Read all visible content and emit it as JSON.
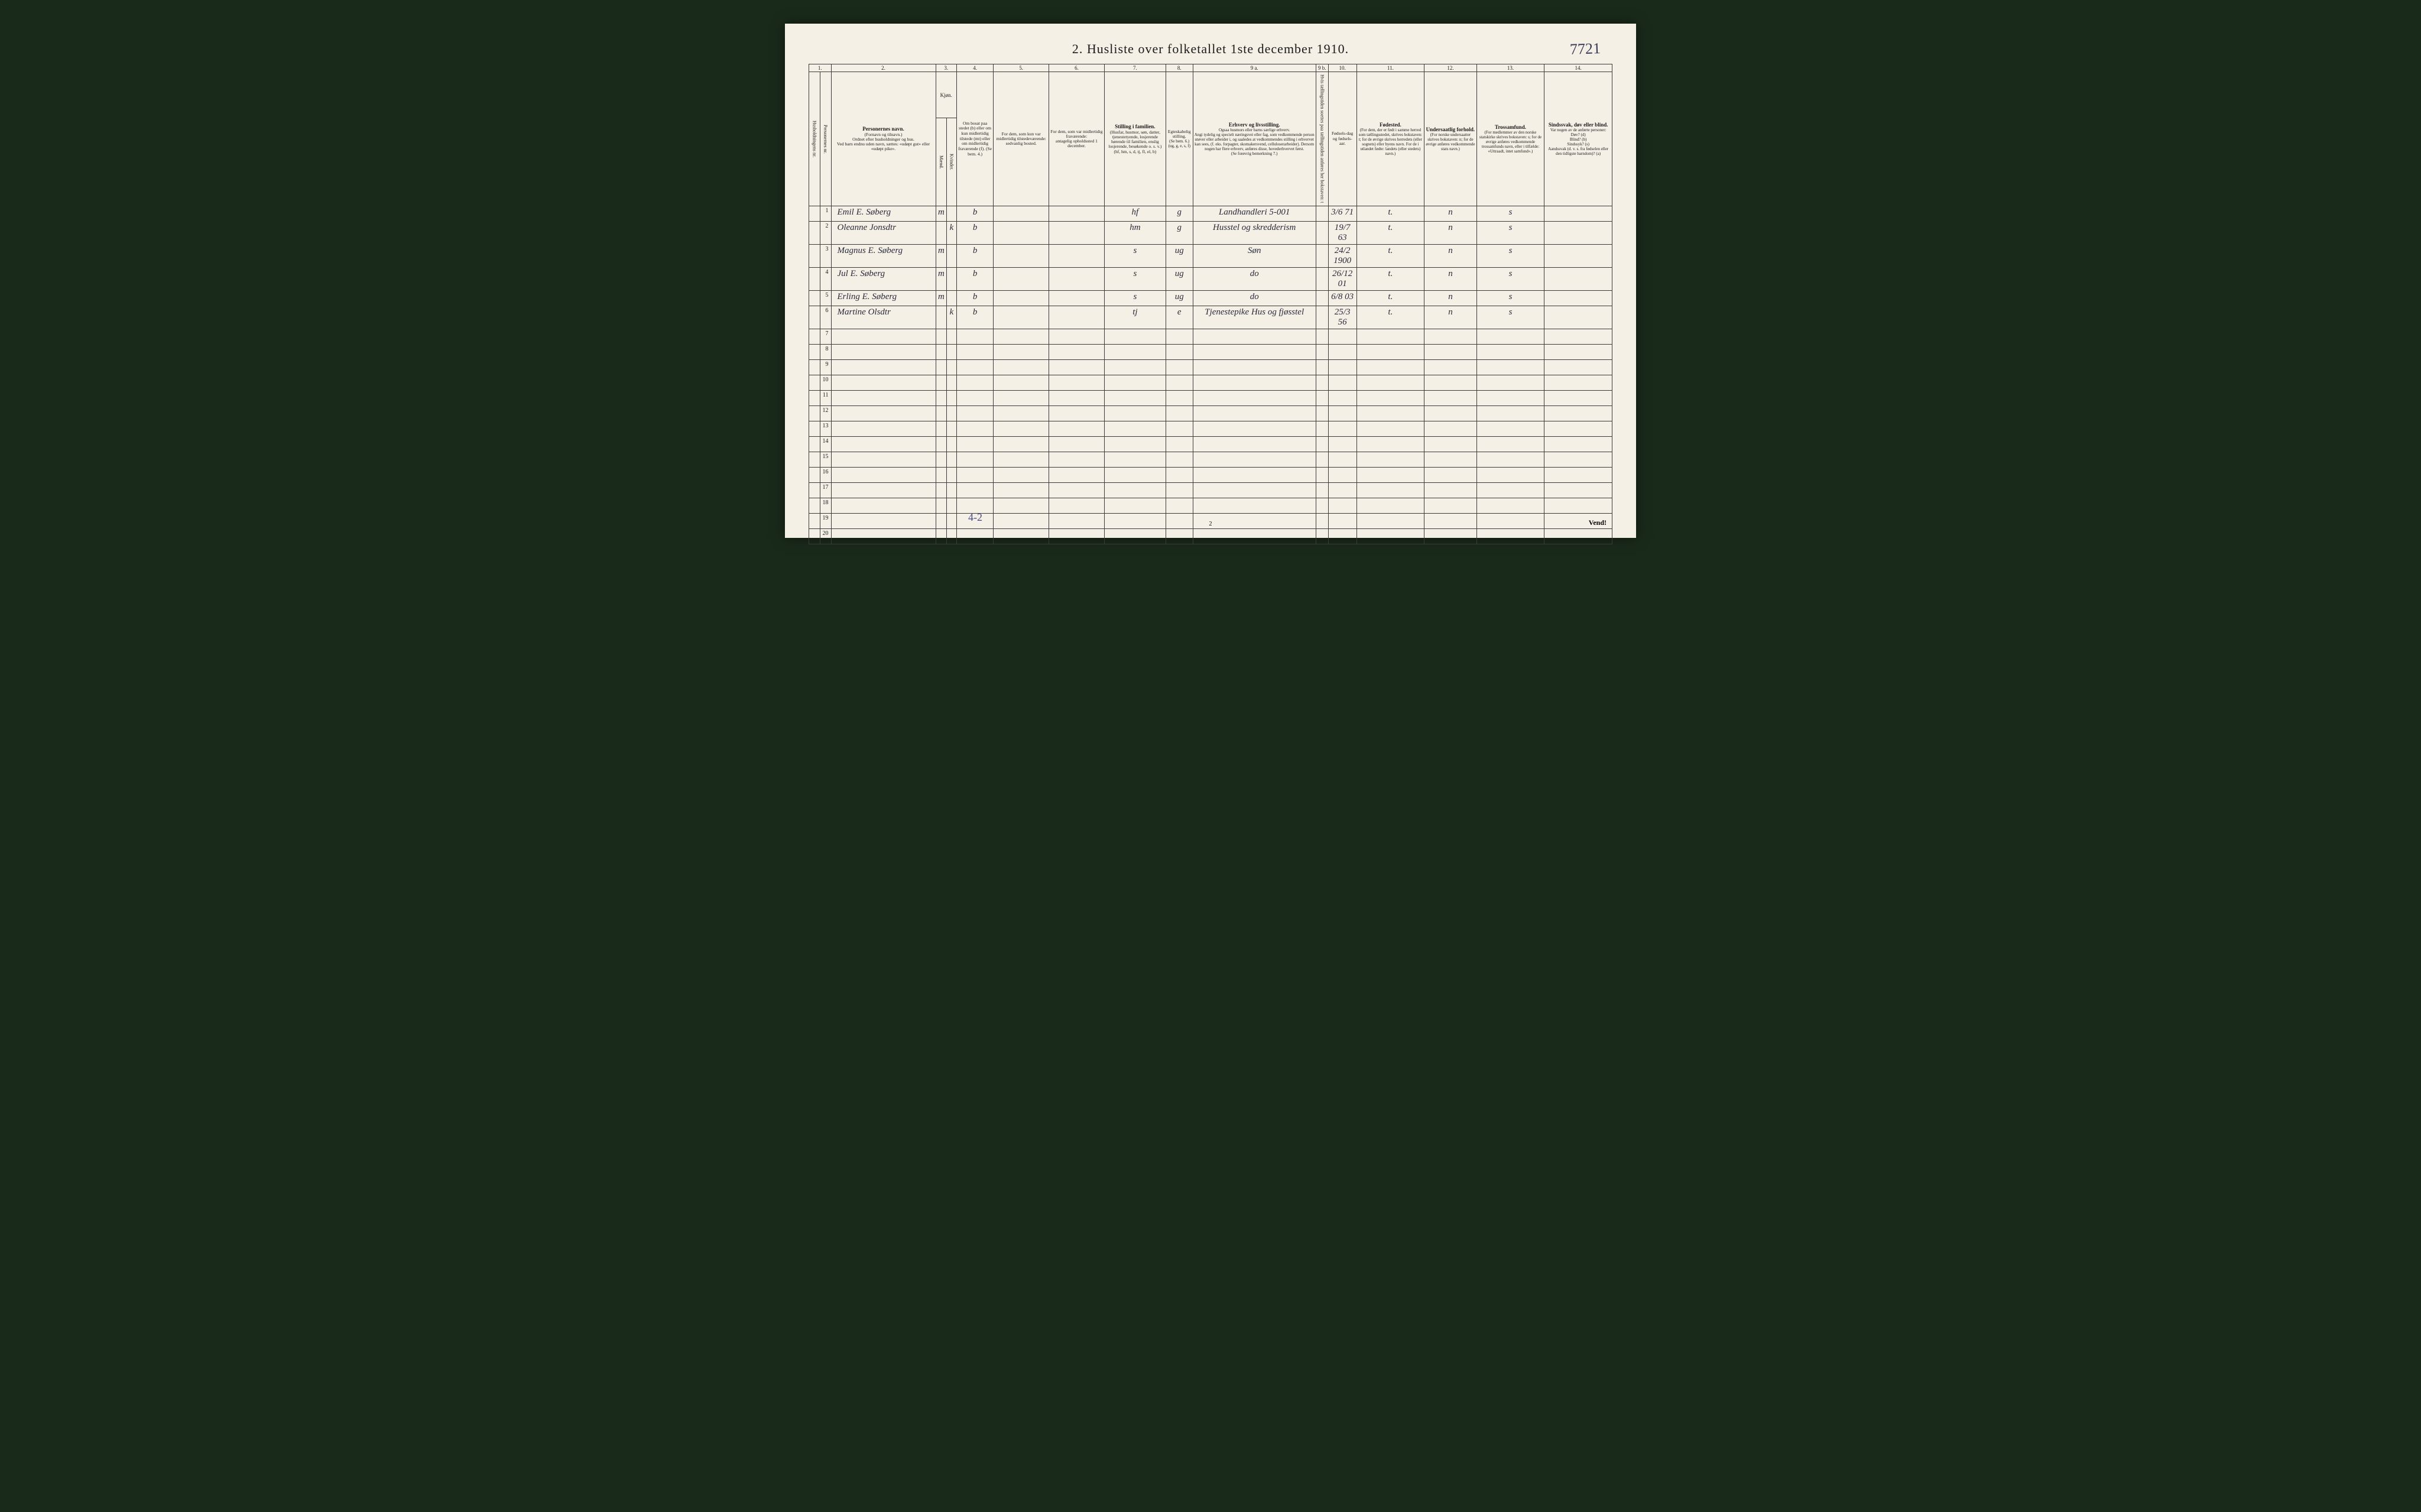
{
  "title": "2.  Husliste over folketallet 1ste december 1910.",
  "topright_hand": "7721",
  "colnums": [
    "1.",
    "2.",
    "3.",
    "4.",
    "5.",
    "6.",
    "7.",
    "8.",
    "9 a.",
    "9 b.",
    "10.",
    "11.",
    "12.",
    "13.",
    "14."
  ],
  "headers": {
    "c1a": "Husholdningens nr.",
    "c1b": "Personernes nr.",
    "c2": "Personernes navn.",
    "c2sub": "(Fornavn og tilnavn.)\nOrdnet efter husholdninger og hus.\nVed barn endnu uden navn, sættes: «udøpt gut» eller «udøpt pike».",
    "c3": "Kjøn.",
    "c3a": "Mænd.",
    "c3b": "Kvinder.",
    "c3mk": "m.  k.",
    "c4": "Om bosat paa stedet (b) eller om kun midlertidig tilstede (mt) eller om midlertidig fraværende (f). (Se bem. 4.)",
    "c5": "For dem, som kun var midlertidig tilstedeværende:",
    "c5sub": "sedvanlig bosted.",
    "c6": "For dem, som var midlertidig fraværende:",
    "c6sub": "antagelig opholdssted 1 december.",
    "c7": "Stilling i familien.",
    "c7sub": "(Husfar, husmor, søn, datter, tjenestetyende, losjerende hørende til familien, enslig losjerende, besøkende o. s. v.)\n(hf, hm, s, d, tj, fl, el, b)",
    "c8": "Egteskabelig stilling.",
    "c8sub": "(Se bem. 6.)\n(ug, g, e, s, f)",
    "c9a": "Erhverv og livsstilling.",
    "c9asub": "Ogsaa husmors eller barns særlige erhverv.\nAngi tydelig og specielt næringsvei eller fag, som vedkommende person utøver eller arbeider i, og saaledes at vedkommendes stilling i erhvervet kan sees, (f. eks. forpagter, skomakersvend, celluloserarbeider). Dersom nogen har flere erhverv, anføres disse, hovederhvervet først.\n(Se forøvrig bemerkning 7.)",
    "c9b": "Hvis tællingstiden soettes paa tællingstiden anføres her bokstaven: t",
    "c10": "Fødsels-dag og fødsels-aar.",
    "c11": "Fødested.",
    "c11sub": "(For dem, der er født i samme herred som tællingsstedet, skrives bokstaven: t; for de øvrige skrives herredets (eller sognets) eller byens navn. For de i utlandet fødte: landets (eller stedets) navn.)",
    "c12": "Undersaatlig forhold.",
    "c12sub": "(For norske undersaatter skrives bokstaven: n; for de øvrige anføres vedkommende stats navn.)",
    "c13": "Trossamfund.",
    "c13sub": "(For medlemmer av den norske statskirke skrives bokstaven: s; for de øvrige anføres vedkommende trossamfunds navn, eller i tilfælde: «Uttraadt, intet samfund».)",
    "c14": "Sindssvak, døv eller blind.",
    "c14sub": "Var nogen av de anførte personer:\nDøv? (d)\nBlind? (b)\nSindssyk? (s)\nAandssvak (d. v. s. fra fødselen eller den tidligste barndom)? (a)"
  },
  "rows": [
    {
      "n": "1",
      "name": "Emil E. Søberg",
      "sex_m": "m",
      "sex_k": "",
      "c4": "b",
      "c7": "hf",
      "c8": "g",
      "c9a": "Landhandleri   5-001",
      "c10": "3/6 71",
      "c11": "t.",
      "c12": "n",
      "c13": "s"
    },
    {
      "n": "2",
      "name": "Oleanne Jonsdtr",
      "sex_m": "",
      "sex_k": "k",
      "c4": "b",
      "c7": "hm",
      "c8": "g",
      "c9a": "Husstel og skredderism",
      "c10": "19/7 63",
      "c11": "t.",
      "c12": "n",
      "c13": "s"
    },
    {
      "n": "3",
      "name": "Magnus E. Søberg",
      "sex_m": "m",
      "sex_k": "",
      "c4": "b",
      "c7": "s",
      "c8": "ug",
      "c9a": "Søn",
      "c10": "24/2 1900",
      "c11": "t.",
      "c12": "n",
      "c13": "s"
    },
    {
      "n": "4",
      "name": "Jul E. Søberg",
      "sex_m": "m",
      "sex_k": "",
      "c4": "b",
      "c7": "s",
      "c8": "ug",
      "c9a": "do",
      "c10": "26/12 01",
      "c11": "t.",
      "c12": "n",
      "c13": "s"
    },
    {
      "n": "5",
      "name": "Erling E. Søberg",
      "sex_m": "m",
      "sex_k": "",
      "c4": "b",
      "c7": "s",
      "c8": "ug",
      "c9a": "do",
      "c10": "6/8 03",
      "c11": "t.",
      "c12": "n",
      "c13": "s"
    },
    {
      "n": "6",
      "name": "Martine Olsdtr",
      "sex_m": "",
      "sex_k": "k",
      "c4": "b",
      "c7": "tj",
      "c8": "e",
      "c9a": "Tjenestepike Hus og fjøsstel",
      "c10": "25/3 56",
      "c11": "t.",
      "c12": "n",
      "c13": "s"
    },
    {
      "n": "7"
    },
    {
      "n": "8"
    },
    {
      "n": "9"
    },
    {
      "n": "10"
    },
    {
      "n": "11"
    },
    {
      "n": "12"
    },
    {
      "n": "13"
    },
    {
      "n": "14"
    },
    {
      "n": "15"
    },
    {
      "n": "16"
    },
    {
      "n": "17"
    },
    {
      "n": "18"
    },
    {
      "n": "19"
    },
    {
      "n": "20"
    }
  ],
  "footer_hand": "4-2",
  "page_num": "2",
  "vend": "Vend!",
  "colwidths": {
    "c1a": "14px",
    "c1b": "14px",
    "c2": "170px",
    "c3a": "16px",
    "c3b": "16px",
    "c4": "60px",
    "c5": "90px",
    "c6": "90px",
    "c7": "100px",
    "c8": "42px",
    "c9a": "200px",
    "c9b": "20px",
    "c10": "46px",
    "c11": "110px",
    "c12": "85px",
    "c13": "110px",
    "c14": "110px"
  }
}
